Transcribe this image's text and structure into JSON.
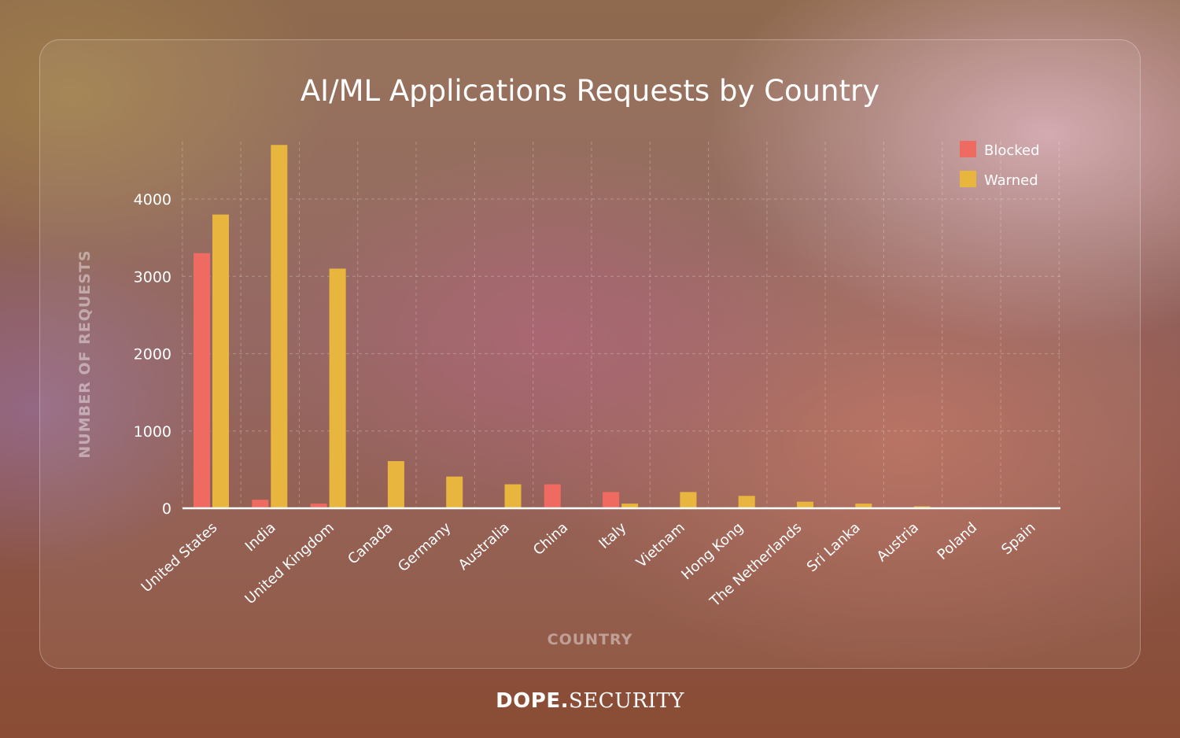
{
  "chart_data": {
    "type": "bar",
    "title": "AI/ML Applications Requests by Country",
    "xlabel": "COUNTRY",
    "ylabel": "NUMBER OF REQUESTS",
    "ylim": [
      0,
      4750
    ],
    "yticks": [
      0,
      1000,
      2000,
      3000,
      4000
    ],
    "grid": true,
    "legend_position": "top-right",
    "categories": [
      "United States",
      "India",
      "United Kingdom",
      "Canada",
      "Germany",
      "Australia",
      "China",
      "Italy",
      "Vietnam",
      "Hong Kong",
      "The Netherlands",
      "Sri Lanka",
      "Austria",
      "Poland",
      "Spain"
    ],
    "series": [
      {
        "name": "Blocked",
        "color": "#ef6a60",
        "values": [
          3300,
          110,
          60,
          0,
          0,
          0,
          310,
          210,
          0,
          0,
          0,
          0,
          0,
          0,
          0
        ]
      },
      {
        "name": "Warned",
        "color": "#e8b63e",
        "values": [
          3800,
          4700,
          3100,
          610,
          410,
          310,
          0,
          60,
          210,
          160,
          85,
          60,
          25,
          0,
          0
        ]
      }
    ]
  },
  "brand": {
    "bold": "DOPE.",
    "light": "SECURITY"
  }
}
